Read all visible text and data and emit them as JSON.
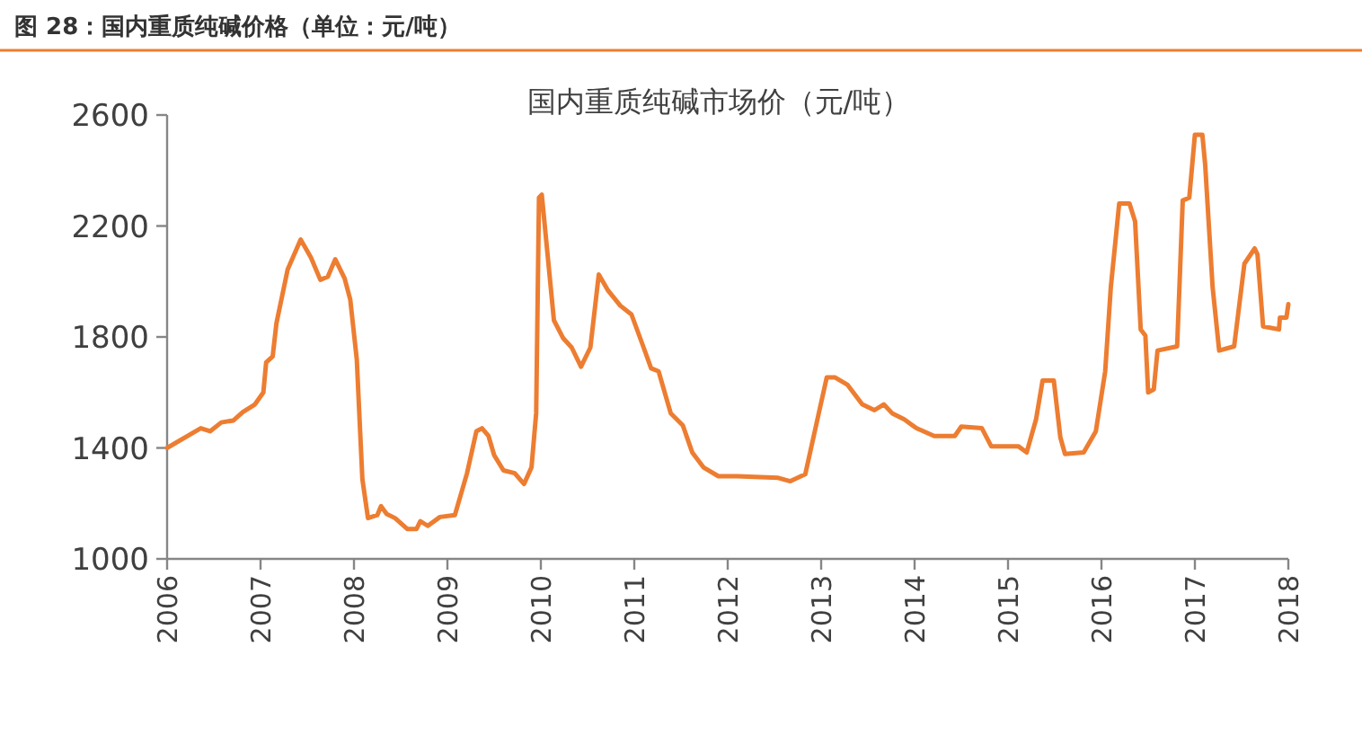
{
  "chart_data": {
    "type": "line",
    "title": "图 28：国内重质纯碱价格（单位：元/吨）",
    "subtitle": "国内重质纯碱市场价（元/吨）",
    "xlim": [
      2006,
      2018
    ],
    "xticks": [
      2006,
      2007,
      2008,
      2009,
      2010,
      2011,
      2012,
      2013,
      2014,
      2015,
      2016,
      2017,
      2018
    ],
    "ylim": [
      1000,
      2600
    ],
    "yticks": [
      1000,
      1400,
      1800,
      2200,
      2600
    ],
    "grid": false,
    "marker": "none",
    "line_style": "solid",
    "series": [
      {
        "color": "#ed7d31",
        "x": [
          2006.0,
          2006.36,
          2006.46,
          2006.58,
          2006.71,
          2006.81,
          2006.94,
          2007.03,
          2007.06,
          2007.13,
          2007.17,
          2007.29,
          2007.43,
          2007.54,
          2007.64,
          2007.72,
          2007.8,
          2007.9,
          2007.96,
          2008.03,
          2008.09,
          2008.15,
          2008.25,
          2008.29,
          2008.35,
          2008.44,
          2008.57,
          2008.67,
          2008.71,
          2008.79,
          2008.92,
          2009.08,
          2009.21,
          2009.31,
          2009.37,
          2009.44,
          2009.5,
          2009.6,
          2009.72,
          2009.82,
          2009.9,
          2009.95,
          2009.98,
          2010.01,
          2010.14,
          2010.24,
          2010.33,
          2010.43,
          2010.53,
          2010.62,
          2010.72,
          2010.85,
          2010.97,
          2011.1,
          2011.18,
          2011.26,
          2011.39,
          2011.52,
          2011.62,
          2011.74,
          2011.9,
          2012.1,
          2012.54,
          2012.67,
          2012.83,
          2012.96,
          2013.06,
          2013.15,
          2013.28,
          2013.44,
          2013.57,
          2013.67,
          2013.76,
          2013.89,
          2014.02,
          2014.21,
          2014.43,
          2014.5,
          2014.72,
          2014.82,
          2015.11,
          2015.2,
          2015.3,
          2015.37,
          2015.49,
          2015.56,
          2015.61,
          2015.81,
          2015.94,
          2016.04,
          2016.1,
          2016.19,
          2016.3,
          2016.36,
          2016.42,
          2016.47,
          2016.5,
          2016.56,
          2016.6,
          2016.81,
          2016.87,
          2016.94,
          2017.0,
          2017.08,
          2017.11,
          2017.19,
          2017.26,
          2017.42,
          2017.53,
          2017.64,
          2017.67,
          2017.73,
          2017.9,
          2017.91,
          2017.98,
          2018.0
        ],
        "values": [
          1400,
          1471,
          1460,
          1492,
          1499,
          1529,
          1557,
          1600,
          1708,
          1730,
          1849,
          2043,
          2151,
          2086,
          2006,
          2017,
          2080,
          2011,
          1935,
          1719,
          1287,
          1147,
          1158,
          1190,
          1162,
          1147,
          1108,
          1108,
          1136,
          1119,
          1151,
          1158,
          1309,
          1460,
          1471,
          1443,
          1374,
          1319,
          1309,
          1270,
          1330,
          1525,
          2302,
          2313,
          1860,
          1795,
          1762,
          1693,
          1762,
          2025,
          1967,
          1913,
          1881,
          1762,
          1687,
          1676,
          1525,
          1481,
          1384,
          1330,
          1298,
          1298,
          1292,
          1280,
          1305,
          1503,
          1654,
          1654,
          1628,
          1557,
          1536,
          1557,
          1525,
          1503,
          1471,
          1443,
          1443,
          1477,
          1471,
          1406,
          1406,
          1384,
          1503,
          1643,
          1643,
          1438,
          1378,
          1384,
          1460,
          1676,
          1978,
          2281,
          2281,
          2216,
          1827,
          1805,
          1600,
          1611,
          1751,
          1766,
          2292,
          2302,
          2529,
          2529,
          2421,
          1978,
          1751,
          1766,
          2064,
          2119,
          2097,
          1838,
          1827,
          1870,
          1870,
          1918
        ]
      }
    ]
  }
}
